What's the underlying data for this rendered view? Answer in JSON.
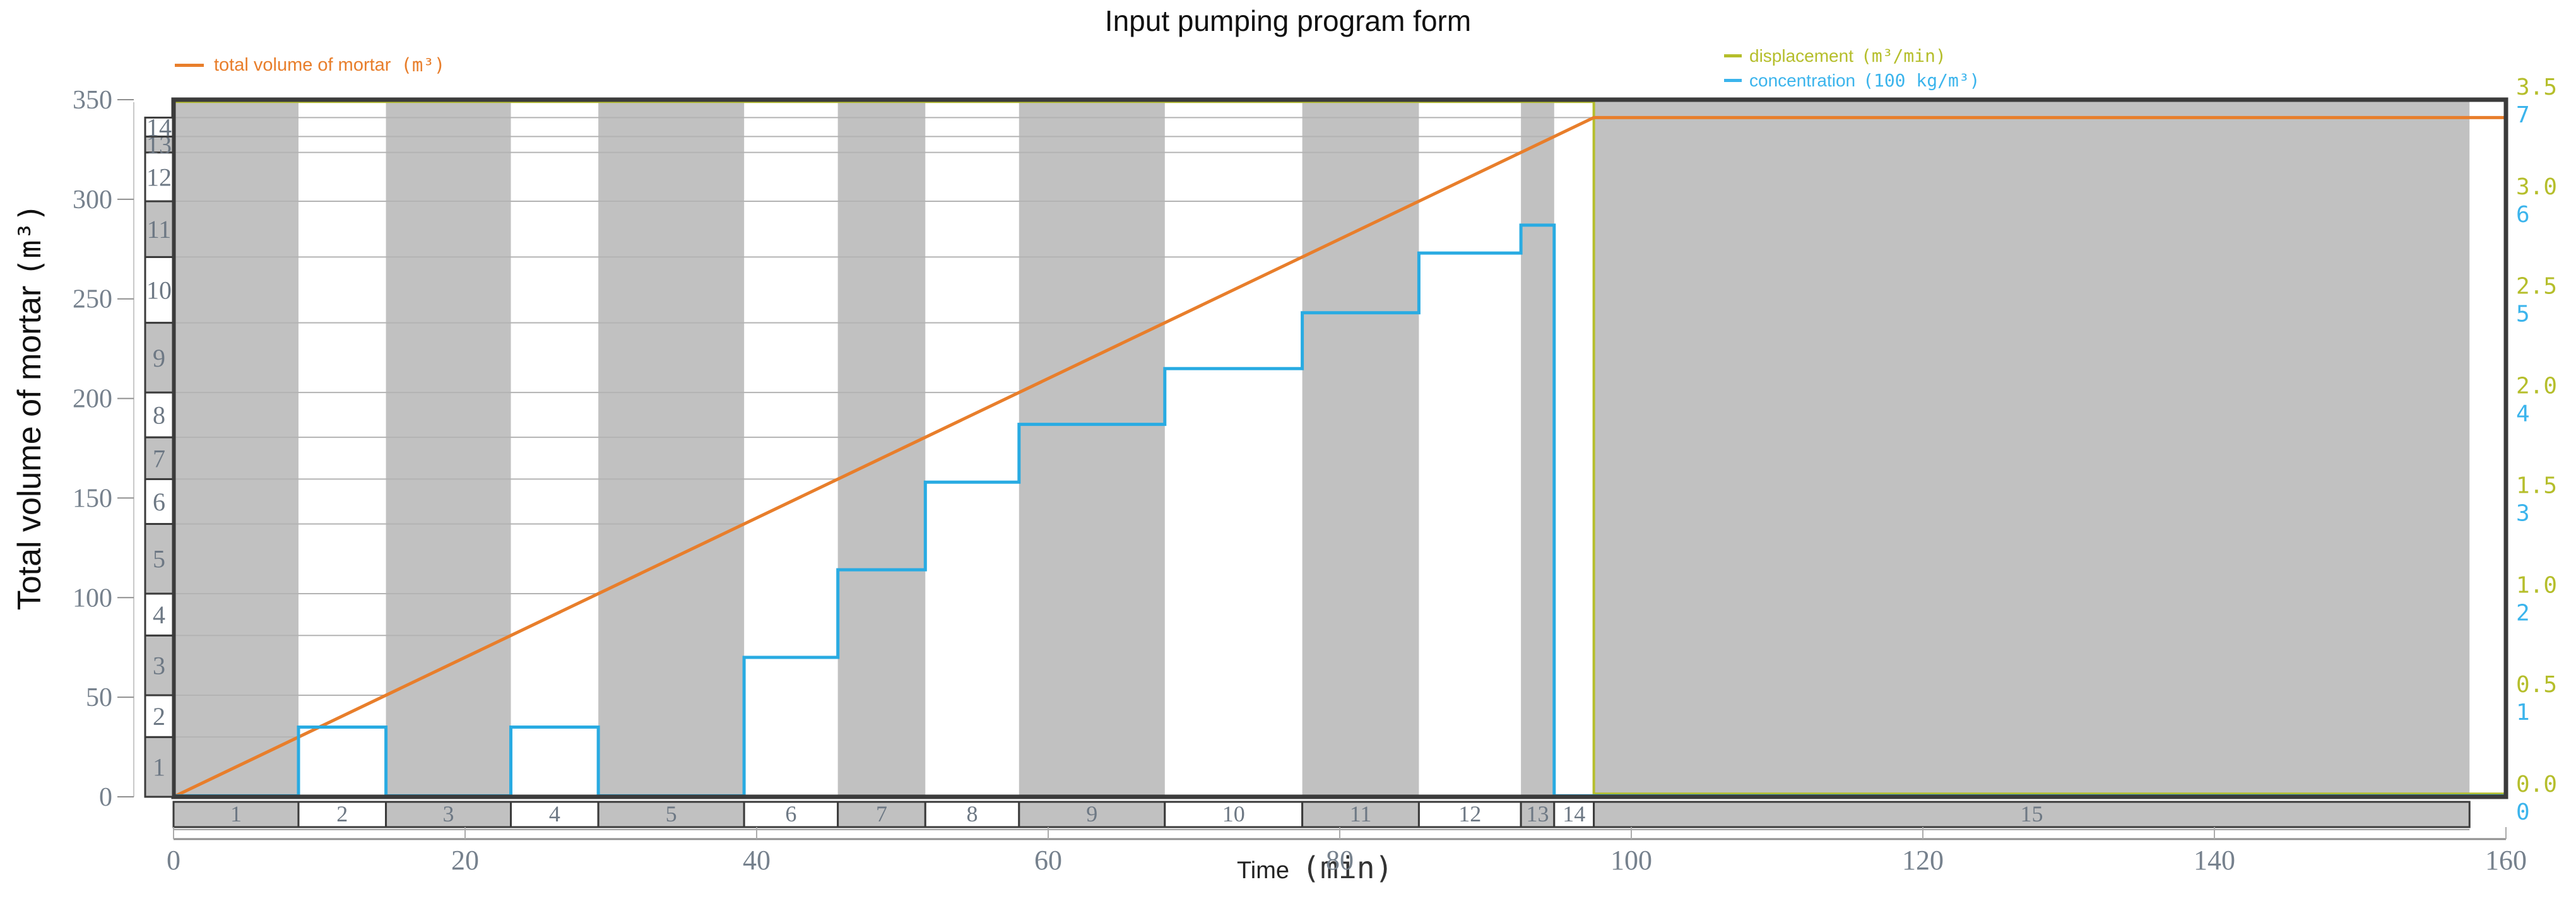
{
  "title": "Input pumping program form",
  "legend": {
    "total_volume": {
      "label": "total volume of mortar",
      "unit": "(m³)"
    },
    "displacement": {
      "label": "displacement",
      "unit": "(m³/min)"
    },
    "concentration": {
      "label": "concentration",
      "unit": "(100 kg/m³)"
    }
  },
  "axes": {
    "y_left_title": "Total volume of mortar",
    "y_left_unit": "(m³)",
    "x_title_word": "Time",
    "x_title_unit": "(min)"
  },
  "chart_data": {
    "type": "line",
    "title": "Input pumping program form",
    "xlabel": "Time (min)",
    "ylabel_left": "Total volume of mortar (m³)",
    "ylabel_right_displacement": "displacement (m³/min)",
    "ylabel_right_concentration": "concentration (100 kg/m³)",
    "xlim": [
      0,
      160
    ],
    "ylim_left": [
      0,
      350
    ],
    "ylim_displacement": [
      0,
      3.5
    ],
    "ylim_concentration": [
      0,
      7
    ],
    "x_ticks": [
      0,
      20,
      40,
      60,
      80,
      100,
      120,
      140,
      160
    ],
    "y_ticks_left": [
      0,
      50,
      100,
      150,
      200,
      250,
      300,
      350
    ],
    "right_axis_pairs": [
      {
        "disp": "0.0",
        "conc": "0"
      },
      {
        "disp": "0.5",
        "conc": "1"
      },
      {
        "disp": "1.0",
        "conc": "2"
      },
      {
        "disp": "1.5",
        "conc": "3"
      },
      {
        "disp": "2.0",
        "conc": "4"
      },
      {
        "disp": "2.5",
        "conc": "5"
      },
      {
        "disp": "3.0",
        "conc": "6"
      },
      {
        "disp": "3.5",
        "conc": "7"
      }
    ],
    "pump_rate_m3_per_min": 3.5,
    "total_volume_m3": 341,
    "pumping_end_min": 97.43,
    "stage_band_end_min": 157.5,
    "series_total_volume": [
      [
        0,
        0
      ],
      [
        97.43,
        341
      ],
      [
        160,
        341
      ]
    ],
    "series_displacement": {
      "value": 3.5,
      "until_min": 97.43,
      "after_value": 0
    },
    "stages": [
      {
        "n": 1,
        "start": 0,
        "end": 8.57,
        "volume": 30,
        "concentration": 0
      },
      {
        "n": 2,
        "start": 8.57,
        "end": 14.57,
        "volume": 21,
        "concentration": 0.7
      },
      {
        "n": 3,
        "start": 14.57,
        "end": 23.14,
        "volume": 30,
        "concentration": 0
      },
      {
        "n": 4,
        "start": 23.14,
        "end": 29.14,
        "volume": 21,
        "concentration": 0.7
      },
      {
        "n": 5,
        "start": 29.14,
        "end": 39.14,
        "volume": 35,
        "concentration": 0
      },
      {
        "n": 6,
        "start": 39.14,
        "end": 45.57,
        "volume": 22.5,
        "concentration": 1.4
      },
      {
        "n": 7,
        "start": 45.57,
        "end": 51.57,
        "volume": 21,
        "concentration": 2.28
      },
      {
        "n": 8,
        "start": 51.57,
        "end": 58,
        "volume": 22.5,
        "concentration": 3.16
      },
      {
        "n": 9,
        "start": 58,
        "end": 68,
        "volume": 35,
        "concentration": 3.74
      },
      {
        "n": 10,
        "start": 68,
        "end": 77.43,
        "volume": 33,
        "concentration": 4.3
      },
      {
        "n": 11,
        "start": 77.43,
        "end": 85.43,
        "volume": 28,
        "concentration": 4.86
      },
      {
        "n": 12,
        "start": 85.43,
        "end": 92.43,
        "volume": 24.5,
        "concentration": 5.46
      },
      {
        "n": 13,
        "start": 92.43,
        "end": 94.71,
        "volume": 8,
        "concentration": 5.74
      },
      {
        "n": 14,
        "start": 94.71,
        "end": 97.43,
        "volume": 9.5,
        "concentration": 0
      },
      {
        "n": 15,
        "start": 97.43,
        "end": 157.5,
        "volume": 0,
        "concentration": 0
      }
    ],
    "colors": {
      "orange": "#E87E2B",
      "olive": "#B5BE2B",
      "cyan": "#29ABE2",
      "cyan_label": "#3BB4EC",
      "band_gray": "#C1C1C1",
      "border_dark": "#3B3B3B",
      "grid": "#B3B3B3",
      "axis_gray": "#8F8F8F",
      "tick_label": "#76818D",
      "number_label": "#6D7884",
      "spine_light": "#C9C9C9"
    },
    "layout_hints": {
      "grid": "per-stage cumulative lines",
      "legend_position": "top"
    }
  }
}
